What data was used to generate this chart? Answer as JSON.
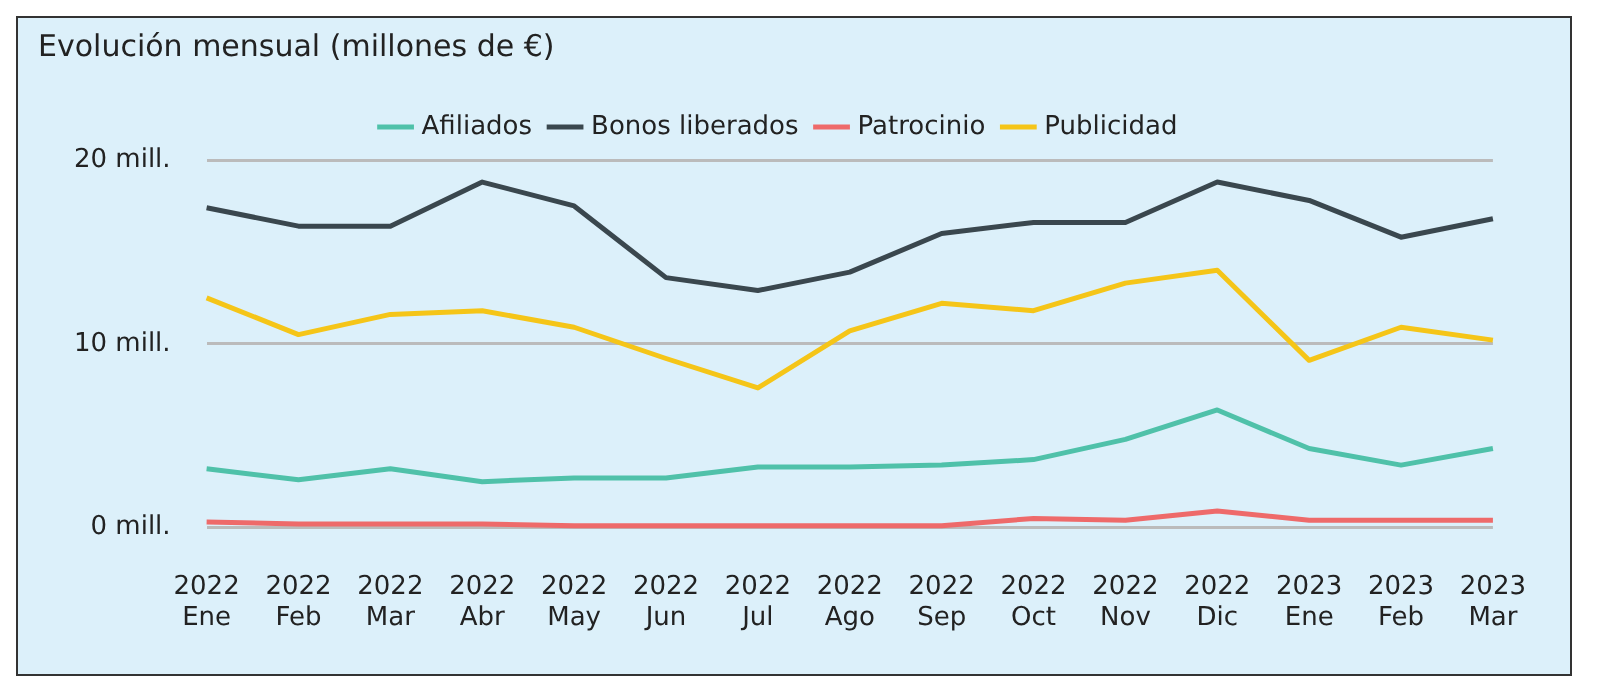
{
  "chart_data": {
    "type": "line",
    "title": "Evolución mensual (millones de €)",
    "categories": [
      "2022 Ene",
      "2022 Feb",
      "2022 Mar",
      "2022 Abr",
      "2022 May",
      "2022 Jun",
      "2022 Jul",
      "2022 Ago",
      "2022 Sep",
      "2022 Oct",
      "2022 Nov",
      "2022 Dic",
      "2023 Ene",
      "2023 Feb",
      "2023 Mar"
    ],
    "series": [
      {
        "name": "Afiliados",
        "color": "#4fc1a9",
        "values": [
          3.2,
          2.6,
          3.2,
          2.5,
          2.7,
          2.7,
          3.3,
          3.3,
          3.4,
          3.7,
          4.8,
          6.4,
          4.3,
          3.4,
          4.3
        ]
      },
      {
        "name": "Bonos liberados",
        "color": "#3a474e",
        "values": [
          17.4,
          16.4,
          16.4,
          18.8,
          17.5,
          13.6,
          12.9,
          13.9,
          16.0,
          16.6,
          16.6,
          18.8,
          17.8,
          15.8,
          16.8
        ]
      },
      {
        "name": "Patrocinio",
        "color": "#ee6a6a",
        "values": [
          0.3,
          0.2,
          0.2,
          0.2,
          0.1,
          0.1,
          0.1,
          0.1,
          0.1,
          0.5,
          0.4,
          0.9,
          0.4,
          0.4,
          0.4
        ]
      },
      {
        "name": "Publicidad",
        "color": "#f5c518",
        "values": [
          12.5,
          10.5,
          11.6,
          11.8,
          10.9,
          9.2,
          7.6,
          10.7,
          12.2,
          11.8,
          13.3,
          14.0,
          9.1,
          10.9,
          10.2
        ]
      }
    ],
    "ylim": [
      0,
      20
    ],
    "yticks": [
      {
        "value": 0,
        "label": "0 mill."
      },
      {
        "value": 10,
        "label": "10 mill."
      },
      {
        "value": 20,
        "label": "20 mill."
      }
    ],
    "grid": "y",
    "legend": "top",
    "marker": "none",
    "line_style": "solid"
  }
}
